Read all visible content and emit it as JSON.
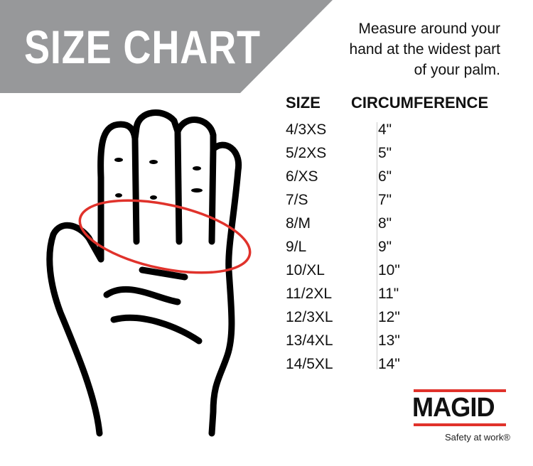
{
  "banner": {
    "title": "SIZE CHART",
    "color": "#97989a"
  },
  "instructions": [
    "Measure around your",
    "hand at the widest part",
    "of your palm."
  ],
  "table": {
    "headers": [
      "SIZE",
      "CIRCUMFERENCE"
    ],
    "sizes": [
      "4/3XS",
      "5/2XS",
      "6/XS",
      "7/S",
      "8/M",
      "9/L",
      "10/XL",
      "11/2XL",
      "12/3XL",
      "13/4XL",
      "14/5XL"
    ],
    "circumferences": [
      "4\"",
      "5\"",
      "6\"",
      "7\"",
      "8\"",
      "9\"",
      "10\"",
      "11\"",
      "12\"",
      "13\"",
      "14\""
    ]
  },
  "illustration": {
    "icon": "hand-outline",
    "measure_color": "#e0322b"
  },
  "logo": {
    "name": "MAGID",
    "tagline": "Safety at work®",
    "accent": "#e0322b"
  }
}
